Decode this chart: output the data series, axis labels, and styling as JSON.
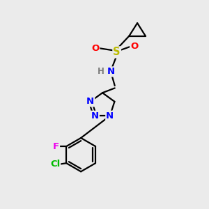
{
  "bg_color": "#ebebeb",
  "bond_color": "#000000",
  "bond_width": 1.6,
  "atom_colors": {
    "C": "#000000",
    "N": "#0000ff",
    "O": "#ff0000",
    "S": "#bbbb00",
    "H": "#7a7a7a",
    "F": "#ee00ee",
    "Cl": "#00bb00"
  },
  "font_size": 9.5,
  "small_font_size": 8.5
}
